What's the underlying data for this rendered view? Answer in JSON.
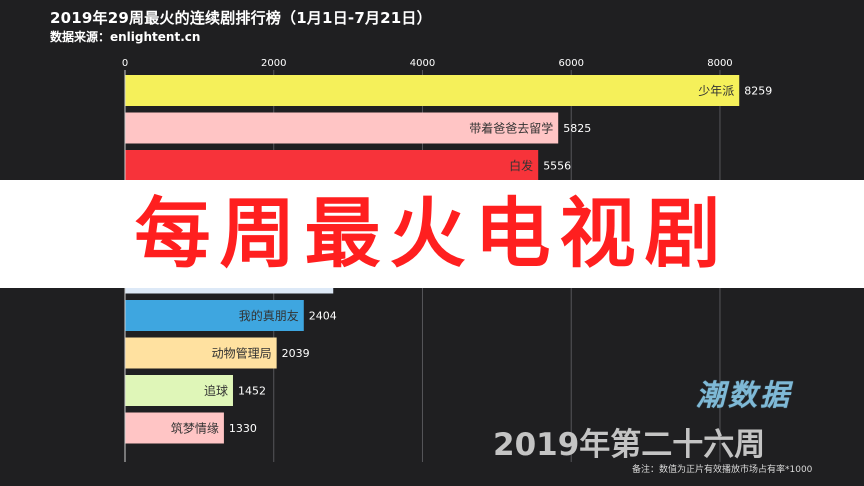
{
  "header": {
    "title": "2019年29周最火的连续剧排行榜（1月1日-7月21日）",
    "source": "数据来源：enlightent.cn"
  },
  "overlay": {
    "text": "每周最火电视剧"
  },
  "brand": {
    "text": "潮数据"
  },
  "period": {
    "label": "2019年第二十六周"
  },
  "footnote": "备注：数值为正片有效播放市场占有率*1000",
  "chart_data": {
    "type": "bar",
    "orientation": "horizontal",
    "xlim": [
      0,
      8700
    ],
    "x_ticks": [
      0,
      2000,
      4000,
      6000,
      8000
    ],
    "categories": [
      "少年派",
      "带着爸爸去留学",
      "白发",
      "",
      "",
      "",
      "我的真朋友",
      "动物管理局",
      "追球",
      "筑梦情缘"
    ],
    "values": [
      8259,
      5825,
      5556,
      null,
      null,
      2800,
      2404,
      2039,
      1452,
      1330
    ],
    "value_labels": [
      "8259",
      "5825",
      "5556",
      "",
      "",
      "",
      "2404",
      "2039",
      "1452",
      "1330"
    ],
    "colors": [
      "#f5f05a",
      "#ffc5c5",
      "#f7333a",
      "#e8e8e8",
      "#e8e8e8",
      "#dde9f7",
      "#3ea6e0",
      "#ffe1a0",
      "#dff6b8",
      "#ffc5c5"
    ]
  }
}
